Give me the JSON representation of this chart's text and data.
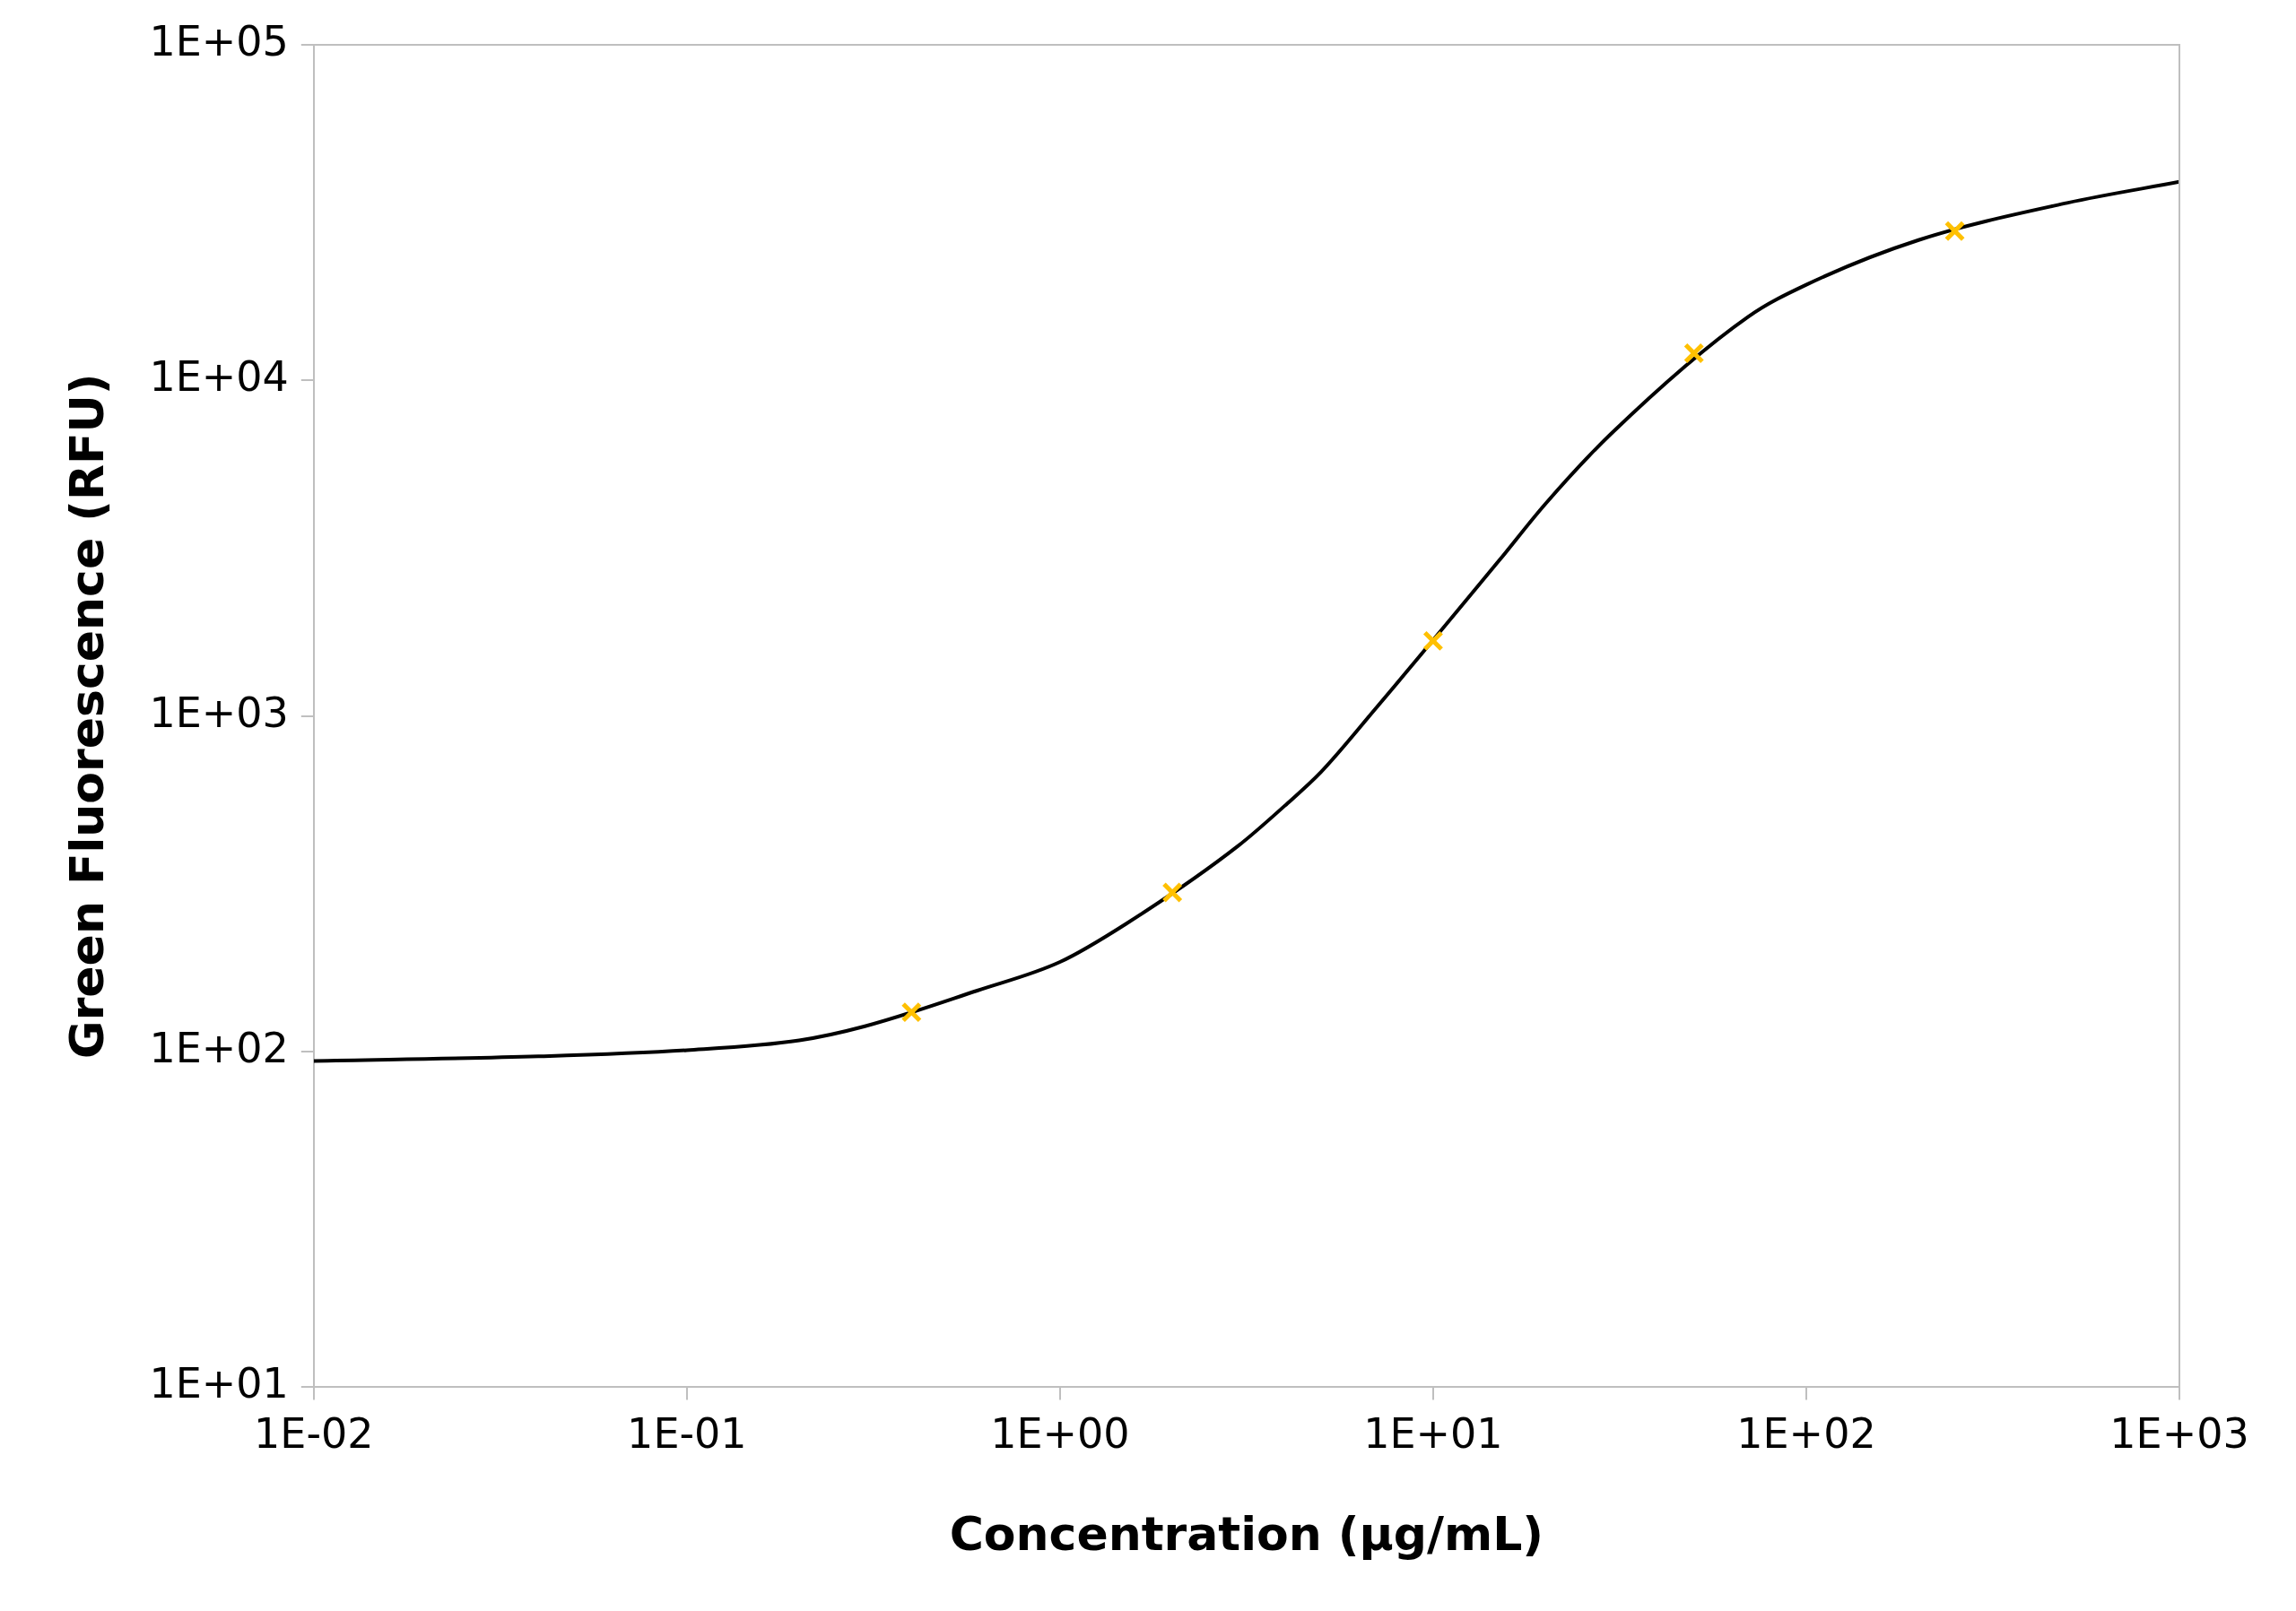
{
  "chart_data": {
    "type": "scatter",
    "xlabel": "Concentration (µg/mL)",
    "ylabel": "Green Fluorescence (RFU)",
    "log": "xy",
    "grid": false,
    "xlim": [
      0.01,
      1000
    ],
    "xticks": [
      {
        "value": 0.01,
        "label": "1E-02"
      },
      {
        "value": 0.1,
        "label": "1E-01"
      },
      {
        "value": 1,
        "label": "1E+00"
      },
      {
        "value": 10,
        "label": "1E+01"
      },
      {
        "value": 100,
        "label": "1E+02"
      },
      {
        "value": 1000,
        "label": "1E+03"
      }
    ],
    "ylim": [
      10,
      100000
    ],
    "yticks": [
      {
        "value": 10,
        "label": "1E+01"
      },
      {
        "value": 100,
        "label": "1E+02"
      },
      {
        "value": 1000,
        "label": "1E+03"
      },
      {
        "value": 10000,
        "label": "1E+04"
      },
      {
        "value": 100000,
        "label": "1E+05"
      }
    ],
    "series": [
      {
        "type": "line",
        "color": "#000000",
        "marker": "none",
        "x": [
          0.01,
          0.04,
          0.1,
          0.2,
          0.3,
          0.6,
          1,
          1.5,
          3,
          4,
          5,
          7,
          15,
          20,
          30,
          70,
          100,
          200,
          500,
          1000
        ],
        "values": [
          93.8,
          96.8,
          101,
          108,
          119,
          152,
          185,
          240,
          410,
          540,
          680,
          1050,
          2900,
          4290,
          6940,
          15500,
          19280,
          26200,
          33800,
          39060
        ]
      },
      {
        "type": "scatter",
        "color": "#ffc000",
        "marker": "cross",
        "x": [
          0.4,
          2,
          10,
          50,
          250
        ],
        "values": [
          131,
          298,
          1675,
          12050,
          27860
        ]
      }
    ]
  }
}
